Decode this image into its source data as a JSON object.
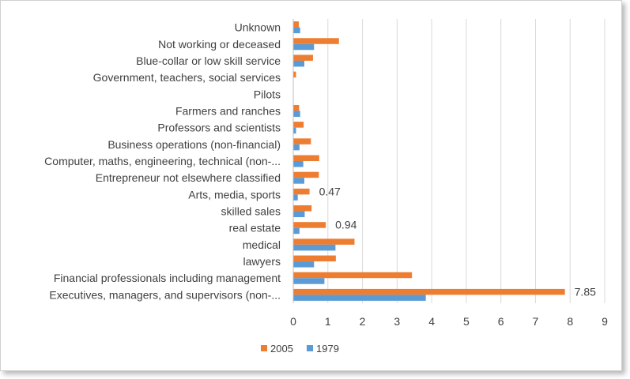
{
  "chart_data": {
    "type": "bar",
    "orientation": "horizontal",
    "categories": [
      "Executives, managers, and supervisors (non-...",
      "Financial professionals including management",
      "lawyers",
      "medical",
      "real estate",
      "skilled sales",
      "Arts, media, sports",
      "Entrepreneur not elsewhere classified",
      "Computer, maths, engineering, technical (non-...",
      "Business operations (non-financial)",
      "Professors and scientists",
      "Farmers and ranches",
      "Pilots",
      "Government, teachers, social services",
      "Blue-collar or low skill service",
      "Not working or deceased",
      "Unknown"
    ],
    "series": [
      {
        "name": "2005",
        "color": "#ED7D31",
        "values": [
          7.85,
          3.43,
          1.23,
          1.77,
          0.94,
          0.53,
          0.47,
          0.74,
          0.75,
          0.51,
          0.3,
          0.17,
          0.0,
          0.08,
          0.57,
          1.32,
          0.16
        ]
      },
      {
        "name": "1979",
        "color": "#5B9BD5",
        "values": [
          3.83,
          0.9,
          0.6,
          1.22,
          0.18,
          0.33,
          0.13,
          0.32,
          0.29,
          0.18,
          0.08,
          0.2,
          0.0,
          0.0,
          0.32,
          0.6,
          0.2
        ]
      }
    ],
    "data_labels": [
      {
        "series": "2005",
        "category_index": 0,
        "text": "7.85"
      },
      {
        "series": "2005",
        "category_index": 4,
        "text": "0.94"
      },
      {
        "series": "2005",
        "category_index": 6,
        "text": "0.47"
      }
    ],
    "xlim": [
      0,
      9
    ],
    "xticks": [
      "0",
      "1",
      "2",
      "3",
      "4",
      "5",
      "6",
      "7",
      "8",
      "9"
    ],
    "title": "",
    "xlabel": "",
    "ylabel": "",
    "grid": true,
    "legend": "bottom"
  }
}
